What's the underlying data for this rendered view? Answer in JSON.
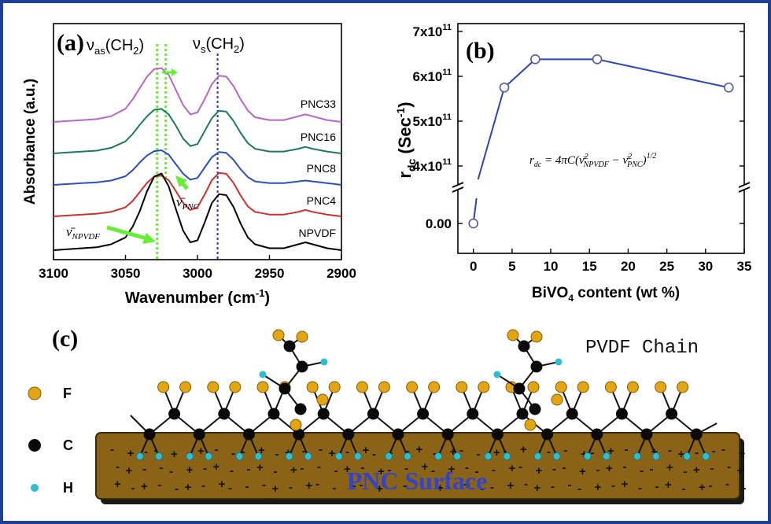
{
  "panel_a": {
    "tag": "(a)",
    "ylabel": "Absorbance (a.u.)",
    "xlabel_main": "Wavenumber (cm",
    "xlabel_sup": "-1",
    "xlabel_close": ")",
    "mode_as": {
      "nu": "ν",
      "sub": "as",
      "rest": "(CH",
      "sub2": "2",
      "close": ")"
    },
    "mode_s": {
      "nu": "ν",
      "sub": "s",
      "rest": "(CH",
      "sub2": "2",
      "close": ")"
    },
    "ann_npvdf": {
      "base": "ν̄",
      "sub": "NPVDF"
    },
    "ann_pnc": {
      "base": "ν̄",
      "sub": "PNC"
    }
  },
  "panel_b": {
    "tag": "(b)",
    "ylabel_main": "r",
    "ylabel_sub": "dc",
    "ylabel_unit": " (Sec",
    "ylabel_sup": "-1",
    "ylabel_close": ")",
    "xlabel_pre": "BiVO",
    "xlabel_sub": "4",
    "xlabel_post": " content (wt %)",
    "y_tick_base": "x10",
    "formula": {
      "lhs": "r",
      "lhs_sub": "dc",
      "eq": " = 4πC(",
      "t1": "ν̄",
      "t1_sup": "2",
      "t1_sub": "NPVDF",
      "minus": " − ",
      "t2": "ν̄",
      "t2_sup": "2",
      "t2_sub": "PNC",
      "close": ")",
      "exp": "1/2"
    }
  },
  "panel_c": {
    "tag": "(c)",
    "chain_label": "PVDF Chain",
    "surface_label": "PNC Surface",
    "legend": [
      {
        "symbol": "F",
        "color": "#e2a514"
      },
      {
        "symbol": "C",
        "color": "#0a0a0a"
      },
      {
        "symbol": "H",
        "color": "#2bbfd1"
      }
    ]
  },
  "colors": {
    "frame": "#1f3f97",
    "PNC33": "#b964c8",
    "PNC16": "#1a7a63",
    "PNC8": "#2a4fc4",
    "PNC4": "#d1302a",
    "NPVDF": "#000000",
    "b_line": "#2a44c0",
    "guide_green": "#66ee33",
    "guide_blue": "#2233dd",
    "surface": "#8a6316"
  },
  "chart_data": [
    {
      "type": "line",
      "panel": "a",
      "xlabel": "Wavenumber (cm-1)",
      "ylabel": "Absorbance (a.u.)",
      "xlim": [
        3100,
        2900
      ],
      "x_ticks": [
        3100,
        3050,
        3000,
        2950,
        2900
      ],
      "x": [
        3100,
        3090,
        3080,
        3070,
        3060,
        3050,
        3045,
        3040,
        3035,
        3030,
        3025,
        3020,
        3015,
        3010,
        3005,
        3000,
        2995,
        2990,
        2985,
        2980,
        2975,
        2970,
        2965,
        2960,
        2950,
        2940,
        2930,
        2925,
        2920,
        2910,
        2900
      ],
      "series": [
        {
          "name": "PNC33",
          "values": [
            0.0,
            0.01,
            0.02,
            0.03,
            0.06,
            0.14,
            0.24,
            0.36,
            0.48,
            0.56,
            0.57,
            0.5,
            0.34,
            0.18,
            0.08,
            0.1,
            0.24,
            0.4,
            0.49,
            0.48,
            0.38,
            0.24,
            0.12,
            0.05,
            0.02,
            0.02,
            0.06,
            0.08,
            0.06,
            0.02,
            0.0
          ]
        },
        {
          "name": "PNC16",
          "values": [
            0.0,
            0.01,
            0.02,
            0.03,
            0.06,
            0.13,
            0.21,
            0.31,
            0.4,
            0.47,
            0.48,
            0.42,
            0.3,
            0.16,
            0.08,
            0.1,
            0.24,
            0.38,
            0.46,
            0.45,
            0.35,
            0.22,
            0.11,
            0.05,
            0.02,
            0.02,
            0.05,
            0.07,
            0.05,
            0.02,
            0.0
          ]
        },
        {
          "name": "PNC8",
          "values": [
            0.0,
            0.01,
            0.02,
            0.03,
            0.05,
            0.1,
            0.17,
            0.26,
            0.34,
            0.39,
            0.4,
            0.35,
            0.24,
            0.13,
            0.06,
            0.08,
            0.2,
            0.32,
            0.38,
            0.37,
            0.29,
            0.18,
            0.09,
            0.04,
            0.02,
            0.02,
            0.04,
            0.05,
            0.04,
            0.02,
            0.0
          ]
        },
        {
          "name": "PNC4",
          "values": [
            0.0,
            0.01,
            0.02,
            0.03,
            0.05,
            0.1,
            0.17,
            0.27,
            0.37,
            0.44,
            0.45,
            0.4,
            0.28,
            0.15,
            0.07,
            0.1,
            0.24,
            0.4,
            0.48,
            0.47,
            0.37,
            0.23,
            0.11,
            0.05,
            0.02,
            0.02,
            0.05,
            0.07,
            0.05,
            0.02,
            0.0
          ]
        },
        {
          "name": "NPVDF",
          "values": [
            0.0,
            0.01,
            0.02,
            0.03,
            0.06,
            0.13,
            0.24,
            0.4,
            0.6,
            0.75,
            0.78,
            0.65,
            0.42,
            0.2,
            0.08,
            0.1,
            0.28,
            0.48,
            0.57,
            0.56,
            0.44,
            0.27,
            0.13,
            0.06,
            0.02,
            0.02,
            0.06,
            0.08,
            0.06,
            0.02,
            0.0
          ]
        }
      ],
      "series_labels": [
        "PNC33",
        "PNC16",
        "PNC8",
        "PNC4",
        "NPVDF"
      ],
      "guide_lines_x": [
        3028,
        3022,
        2986
      ]
    },
    {
      "type": "line",
      "panel": "b",
      "xlabel": "BiVO4 content (wt %)",
      "ylabel": "rdc (Sec-1)",
      "xlim": [
        -2,
        35
      ],
      "x_ticks": [
        0,
        5,
        10,
        15,
        20,
        25,
        30,
        35
      ],
      "y_ticks": [
        {
          "label": "7x10",
          "sup": "11",
          "value": 700000000000.0
        },
        {
          "label": "6x10",
          "sup": "11",
          "value": 600000000000.0
        },
        {
          "label": "5x10",
          "sup": "11",
          "value": 500000000000.0
        },
        {
          "label": "4x10",
          "sup": "11",
          "value": 400000000000.0
        },
        {
          "label": "0.00",
          "sup": "",
          "value": 0
        }
      ],
      "y_break": true,
      "x": [
        0,
        4,
        8,
        16,
        33
      ],
      "values": [
        0,
        575000000000.0,
        638000000000.0,
        638000000000.0,
        575000000000.0
      ]
    }
  ]
}
